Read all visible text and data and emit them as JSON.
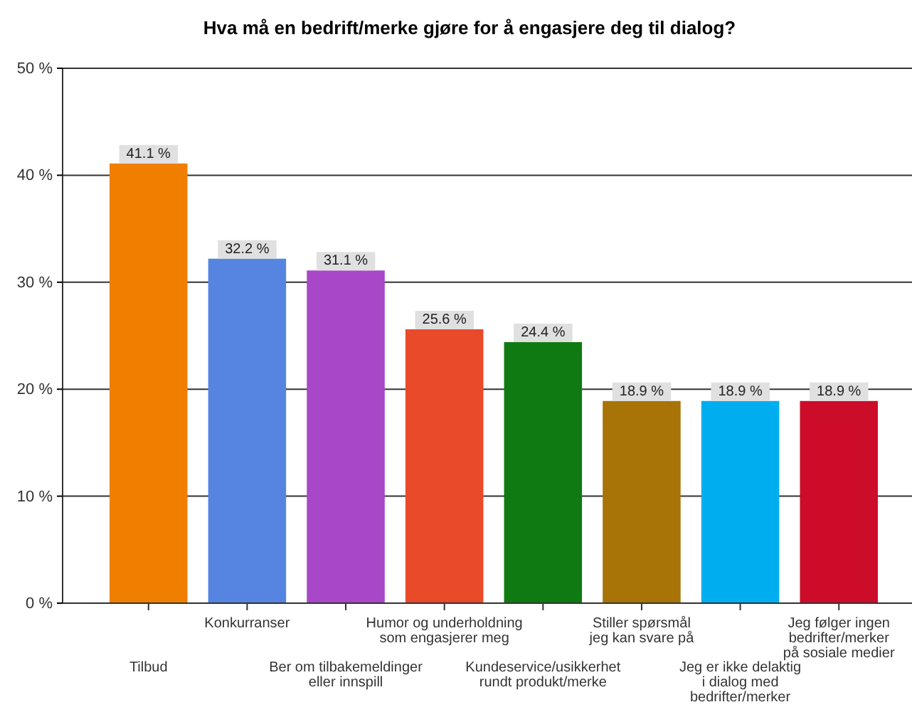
{
  "chart_data": {
    "type": "bar",
    "title": "Hva må en bedrift/merke gjøre for å engasjere deg til dialog?",
    "categories": [
      "Tilbud",
      "Konkurranser",
      "Ber om tilbakemeldinger\neller innspill",
      "Humor og underholdning\nsom engasjerer meg",
      "Kundeservice/usikkerhet\nrundt produkt/merke",
      "Stiller spørsmål\njeg kan svare på",
      "Jeg er ikke delaktig\ni dialog med\nbedrifter/merker",
      "Jeg følger ingen\nbedrifter/merker\npå sosiale medier"
    ],
    "values": [
      41.1,
      32.2,
      31.1,
      25.6,
      24.4,
      18.9,
      18.9,
      18.9
    ],
    "colors": [
      "#f07f00",
      "#5585e0",
      "#a848c8",
      "#e84a2a",
      "#0f7a12",
      "#a87408",
      "#00aef0",
      "#cc0c28"
    ],
    "value_labels": [
      "41.1 %",
      "32.2 %",
      "31.1 %",
      "25.6 %",
      "24.4 %",
      "18.9 %",
      "18.9 %",
      "18.9 %"
    ],
    "ylim": [
      0,
      50
    ],
    "yticks": [
      {
        "value": 0,
        "label": "0 %"
      },
      {
        "value": 10,
        "label": "10 %"
      },
      {
        "value": 20,
        "label": "20 %"
      },
      {
        "value": 30,
        "label": "30 %"
      },
      {
        "value": 40,
        "label": "40 %"
      },
      {
        "value": 50,
        "label": "50 %"
      }
    ],
    "grid": "y"
  }
}
